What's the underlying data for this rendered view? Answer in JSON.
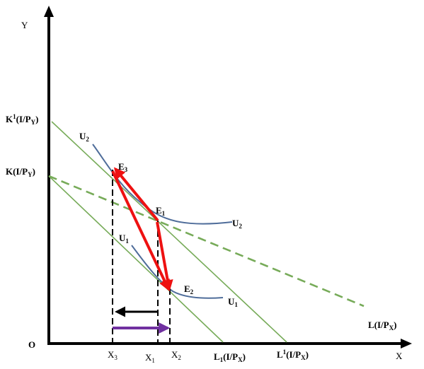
{
  "axes": {
    "origin": "O",
    "x_axis": "X",
    "y_axis": "Y"
  },
  "intercepts": {
    "y_upper": {
      "main": "K",
      "sup": "1",
      "rest": "(I/P",
      "sub": "Y",
      "close": ")"
    },
    "y_lower": {
      "main": "K(I/P",
      "sub": "Y",
      "close": ")"
    },
    "x_L1": {
      "main": "L",
      "sub1": "1",
      "rest": "(I/P",
      "sub": "X",
      "close": ")"
    },
    "x_L1prime": {
      "main": "L",
      "sup": "1",
      "rest": "(I/P",
      "sub": "X",
      "close": ")"
    },
    "x_L": {
      "main": "L(I/P",
      "sub": "X",
      "close": ")"
    }
  },
  "quantities": {
    "x3": {
      "main": "X",
      "sub": "3"
    },
    "x1": {
      "main": "X",
      "sub": "1"
    },
    "x2": {
      "main": "X",
      "sub": "2"
    }
  },
  "points": {
    "e1": {
      "main": "E",
      "sub": "1"
    },
    "e2": {
      "main": "E",
      "sub": "2"
    },
    "e3": {
      "main": "E",
      "sub": "3"
    }
  },
  "curves": {
    "u1_upper": {
      "main": "U",
      "sub": "1"
    },
    "u1_lower": {
      "main": "U",
      "sub": "1"
    },
    "u2_upper": {
      "main": "U",
      "sub": "2"
    },
    "u2_lower": {
      "main": "U",
      "sub": "2"
    }
  },
  "colors": {
    "axis": "#000000",
    "budget_line": "#77ab59",
    "budget_dashed": "#77ab59",
    "indifference_curve": "#4f6d9a",
    "red_arrow": "#ee1111",
    "black_arrow": "#000000",
    "purple_arrow": "#7030a0"
  }
}
